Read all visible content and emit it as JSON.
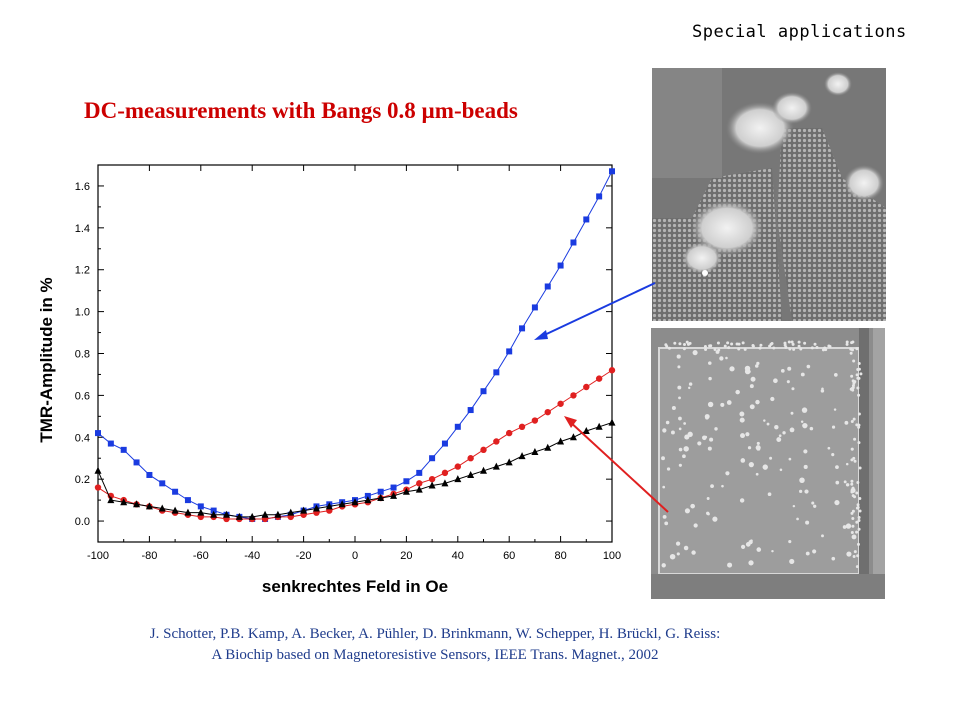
{
  "header": {
    "section_label": "Special applications",
    "title": "DC-measurements with Bangs 0.8 µm-beads"
  },
  "chart_data": {
    "type": "scatter",
    "xlabel": "senkrechtes Feld in Oe",
    "ylabel": "TMR-Amplitude in %",
    "xlim": [
      -100,
      100
    ],
    "ylim": [
      -0.1,
      1.7
    ],
    "x_ticks": [
      "-100",
      "-80",
      "-60",
      "-40",
      "-20",
      "0",
      "20",
      "40",
      "60",
      "80",
      "100"
    ],
    "y_ticks": [
      "0.0",
      "0.2",
      "0.4",
      "0.6",
      "0.8",
      "1.0",
      "1.2",
      "1.4",
      "1.6"
    ],
    "series": [
      {
        "color": "#1a3be0",
        "marker": "square",
        "x": [
          -100,
          -95,
          -90,
          -85,
          -80,
          -75,
          -70,
          -65,
          -60,
          -55,
          -50,
          -45,
          -40,
          -35,
          -30,
          -25,
          -20,
          -15,
          -10,
          -5,
          0,
          5,
          10,
          15,
          20,
          25,
          30,
          35,
          40,
          45,
          50,
          55,
          60,
          65,
          70,
          75,
          80,
          85,
          90,
          95,
          100
        ],
        "y": [
          0.42,
          0.37,
          0.34,
          0.28,
          0.22,
          0.18,
          0.14,
          0.1,
          0.07,
          0.05,
          0.03,
          0.02,
          0.01,
          0.01,
          0.02,
          0.03,
          0.05,
          0.07,
          0.08,
          0.09,
          0.1,
          0.12,
          0.14,
          0.16,
          0.19,
          0.23,
          0.3,
          0.37,
          0.45,
          0.53,
          0.62,
          0.71,
          0.81,
          0.92,
          1.02,
          1.12,
          1.22,
          1.33,
          1.44,
          1.55,
          1.67
        ]
      },
      {
        "color": "#e02020",
        "marker": "circle",
        "x": [
          -100,
          -95,
          -90,
          -85,
          -80,
          -75,
          -70,
          -65,
          -60,
          -55,
          -50,
          -45,
          -40,
          -35,
          -30,
          -25,
          -20,
          -15,
          -10,
          -5,
          0,
          5,
          10,
          15,
          20,
          25,
          30,
          35,
          40,
          45,
          50,
          55,
          60,
          65,
          70,
          75,
          80,
          85,
          90,
          95,
          100
        ],
        "y": [
          0.16,
          0.12,
          0.1,
          0.08,
          0.07,
          0.05,
          0.04,
          0.03,
          0.02,
          0.02,
          0.01,
          0.01,
          0.01,
          0.01,
          0.02,
          0.02,
          0.03,
          0.04,
          0.05,
          0.07,
          0.08,
          0.09,
          0.11,
          0.13,
          0.15,
          0.18,
          0.2,
          0.23,
          0.26,
          0.3,
          0.34,
          0.38,
          0.42,
          0.45,
          0.48,
          0.52,
          0.56,
          0.6,
          0.64,
          0.68,
          0.72
        ]
      },
      {
        "color": "#000000",
        "marker": "triangle",
        "x": [
          -100,
          -95,
          -90,
          -85,
          -80,
          -75,
          -70,
          -65,
          -60,
          -55,
          -50,
          -45,
          -40,
          -35,
          -30,
          -25,
          -20,
          -15,
          -10,
          -5,
          0,
          5,
          10,
          15,
          20,
          25,
          30,
          35,
          40,
          45,
          50,
          55,
          60,
          65,
          70,
          75,
          80,
          85,
          90,
          95,
          100
        ],
        "y": [
          0.24,
          0.1,
          0.09,
          0.08,
          0.07,
          0.06,
          0.05,
          0.04,
          0.04,
          0.03,
          0.03,
          0.02,
          0.02,
          0.03,
          0.03,
          0.04,
          0.05,
          0.06,
          0.07,
          0.08,
          0.09,
          0.1,
          0.11,
          0.12,
          0.14,
          0.15,
          0.17,
          0.18,
          0.2,
          0.22,
          0.24,
          0.26,
          0.28,
          0.31,
          0.33,
          0.35,
          0.38,
          0.4,
          0.43,
          0.45,
          0.47
        ]
      }
    ]
  },
  "images": {
    "micrograph_top": "SEM micrograph: sensor with bead clusters",
    "micrograph_bottom": "SEM micrograph: sensor with dispersed beads"
  },
  "arrows": {
    "blue_color": "#1a3be0",
    "red_color": "#e02020"
  },
  "citation": {
    "authors": "J. Schotter, P.B. Kamp, A. Becker, A. Pühler, D. Brinkmann, W. Schepper, H. Brückl, G. Reiss:",
    "reference": "A Biochip based on Magnetoresistive Sensors, IEEE Trans. Magnet., 2002"
  }
}
